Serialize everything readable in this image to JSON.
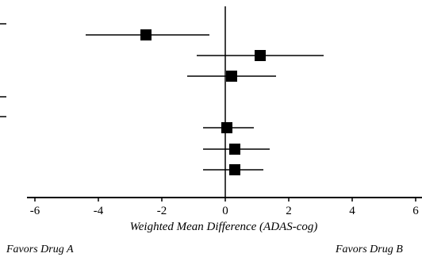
{
  "chart_data": {
    "type": "scatter",
    "subtype": "forest-plot",
    "xlabel": "Weighted Mean Difference (ADAS-cog)",
    "xlim": [
      -6.2,
      6.2
    ],
    "xticks": [
      -6,
      -4,
      -2,
      0,
      2,
      4,
      6
    ],
    "reference_line": 0,
    "left_favor": "Favors Drug A",
    "right_favor": "Favors Drug B",
    "estimates": [
      {
        "point": -2.5,
        "ci_low": -4.4,
        "ci_high": -0.5
      },
      {
        "point": 1.1,
        "ci_low": -0.9,
        "ci_high": 3.1
      },
      {
        "point": 0.2,
        "ci_low": -1.2,
        "ci_high": 1.6
      },
      {
        "point": 0.05,
        "ci_low": -0.7,
        "ci_high": 0.9
      },
      {
        "point": 0.3,
        "ci_low": -0.7,
        "ci_high": 1.4
      },
      {
        "point": 0.3,
        "ci_low": -0.7,
        "ci_high": 1.2
      }
    ]
  }
}
